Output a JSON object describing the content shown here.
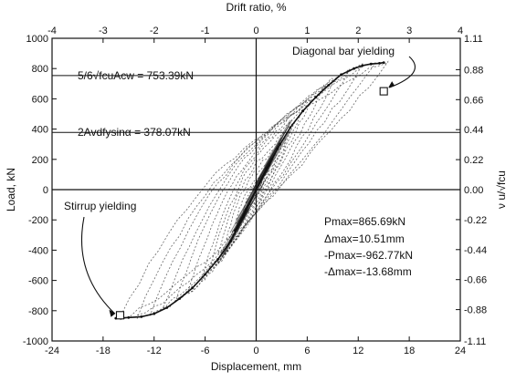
{
  "chart_data": {
    "type": "scatter",
    "title": "",
    "xlabel": "Displacement, mm",
    "ylabel": "Load, kN",
    "x2label": "Drift ratio, %",
    "y2label": "ν u/√fcu",
    "xlim": [
      -24,
      24
    ],
    "ylim": [
      -1000,
      1000
    ],
    "x2lim": [
      -4,
      4
    ],
    "y2lim": [
      -1.11,
      1.11
    ],
    "x_ticks": [
      "-24",
      "-18",
      "-12",
      "-6",
      "0",
      "6",
      "12",
      "18",
      "24"
    ],
    "y_ticks": [
      "1000",
      "800",
      "600",
      "400",
      "200",
      "0",
      "-200",
      "-400",
      "-600",
      "-800",
      "-1000"
    ],
    "x2_ticks": [
      "-4",
      "-3",
      "-2",
      "-1",
      "0",
      "1",
      "2",
      "3",
      "4"
    ],
    "y2_ticks": [
      "1.11",
      "0.88",
      "0.66",
      "0.44",
      "0.22",
      "0.00",
      "-0.22",
      "-0.44",
      "-0.66",
      "-0.88",
      "-1.11"
    ],
    "grid": false,
    "reference_lines": [
      {
        "label": "5/6√fcuAcw = 753.39kN",
        "y": 753.39
      },
      {
        "label": "2Avdfysinα = 378.07kN",
        "y": 378.07
      }
    ],
    "annotations": {
      "diagonal": {
        "label": "Diagonal bar yielding",
        "x": 15.0,
        "y": 650
      },
      "stirrup": {
        "label": "Stirrup yielding",
        "x": -16.0,
        "y": -830
      }
    },
    "stats": [
      "Pmax=865.69kN",
      "Δmax=10.51mm",
      "-Pmax=-962.77kN",
      "-Δmax=-13.68mm"
    ],
    "series": [
      {
        "x": [
          -2.5,
          -1.2,
          0,
          1.2,
          2.5,
          4.0,
          5.5,
          7.0,
          8.5,
          10.0,
          11.5,
          12.5,
          13.5,
          14.5,
          15.0
        ],
        "y": [
          -270,
          -130,
          0,
          140,
          270,
          410,
          520,
          610,
          690,
          760,
          800,
          820,
          830,
          835,
          840
        ]
      },
      {
        "x": [
          -16.5,
          -15.0,
          -13.5,
          -12.0,
          -10.5,
          -9.0,
          -7.5,
          -6.0,
          -4.5,
          -3.0,
          -1.5,
          0,
          1.5,
          2.8
        ],
        "y": [
          -850,
          -845,
          -840,
          -820,
          -780,
          -720,
          -650,
          -560,
          -460,
          -340,
          -180,
          0,
          160,
          300
        ]
      }
    ]
  }
}
